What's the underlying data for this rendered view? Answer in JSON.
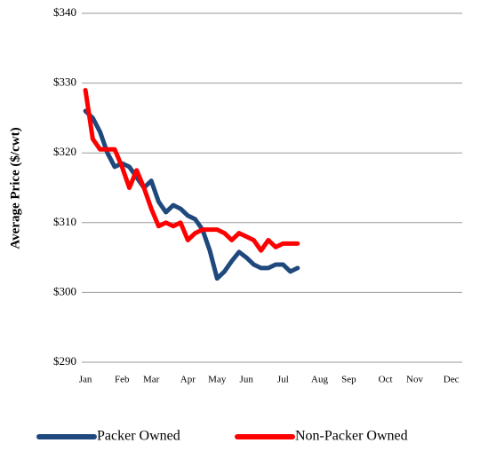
{
  "chart_data": {
    "type": "line",
    "y_label": "Average Price ($/cwt)",
    "categories": [
      "Jan",
      null,
      null,
      null,
      null,
      "Feb",
      null,
      null,
      null,
      "Mar",
      null,
      null,
      null,
      null,
      "Apr",
      null,
      null,
      null,
      "May",
      null,
      null,
      null,
      "Jun",
      null,
      null,
      null,
      null,
      "Jul",
      null,
      null,
      null,
      null,
      "Aug",
      null,
      null,
      null,
      "Sep",
      null,
      null,
      null,
      null,
      "Oct",
      null,
      null,
      null,
      "Nov",
      null,
      null,
      null,
      null,
      "Dec",
      null
    ],
    "series": [
      {
        "name": "Packer Owned",
        "color": "#1f497d",
        "values": [
          326,
          325,
          323,
          320,
          318,
          318.5,
          318,
          316.5,
          315,
          316,
          313,
          311.5,
          312.5,
          312,
          311,
          310.5,
          309,
          306,
          302,
          303,
          304.5,
          305.8,
          305,
          304,
          303.5,
          303.5,
          304,
          304,
          303,
          303.5,
          null,
          null,
          null,
          null,
          null,
          null,
          null,
          null,
          null,
          null,
          null,
          null,
          null,
          null,
          null,
          null,
          null,
          null,
          null,
          null,
          null,
          null
        ]
      },
      {
        "name": "Non-Packer Owned",
        "color": "#ff0000",
        "values": [
          329,
          322,
          320.5,
          320.5,
          320.5,
          318,
          315,
          317.5,
          315,
          312,
          309.5,
          310,
          309.5,
          310,
          307.5,
          308.5,
          309,
          309,
          309,
          308.5,
          307.5,
          308.5,
          308,
          307.5,
          306,
          307.5,
          306.5,
          307,
          307,
          307,
          null,
          null,
          null,
          null,
          null,
          null,
          null,
          null,
          null,
          null,
          null,
          null,
          null,
          null,
          null,
          null,
          null,
          null,
          null,
          null,
          null,
          null
        ]
      }
    ],
    "ylim": [
      290,
      340
    ],
    "yticks": [
      {
        "value": 290,
        "label": "$290"
      },
      {
        "value": 300,
        "label": "$300"
      },
      {
        "value": 310,
        "label": "$310"
      },
      {
        "value": 320,
        "label": "$320"
      },
      {
        "value": 330,
        "label": "$330"
      },
      {
        "value": 340,
        "label": "$340"
      }
    ],
    "grid": true
  }
}
